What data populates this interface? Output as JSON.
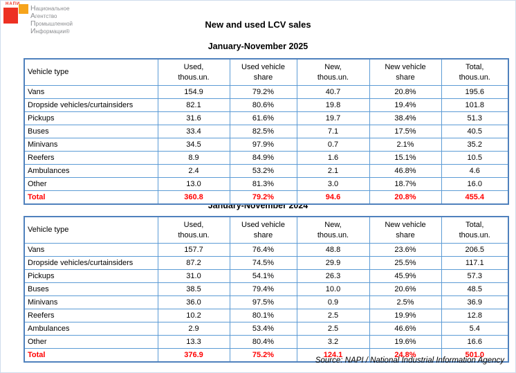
{
  "logo": {
    "mark_text": "НАПИ",
    "name_lines": [
      "Национальное",
      "Агентство",
      "Промышленной",
      "Информации®"
    ],
    "red": "#ED3123",
    "orange": "#F6A41C",
    "text_color": "#8B8D90"
  },
  "title": "New and used LCV sales",
  "source_note": "Source: NAPI / National Industrial Information Agency",
  "col_header_lines": [
    [
      "Vehicle type",
      ""
    ],
    [
      "Used,",
      "thous.un."
    ],
    [
      "Used vehicle",
      "share"
    ],
    [
      "New,",
      "thous.un."
    ],
    [
      "New vehicle",
      "share"
    ],
    [
      "Total,",
      "thous.un."
    ]
  ],
  "chart_data": [
    {
      "type": "table",
      "title": "New and used LCV sales",
      "subtitle": "January-November 2025",
      "columns": [
        "Vehicle type",
        "Used, thous.un.",
        "Used vehicle share",
        "New, thous.un.",
        "New vehicle share",
        "Total, thous.un."
      ],
      "rows": [
        [
          "Vans",
          "154.9",
          "79.2%",
          "40.7",
          "20.8%",
          "195.6"
        ],
        [
          "Dropside vehicles/curtainsiders",
          "82.1",
          "80.6%",
          "19.8",
          "19.4%",
          "101.8"
        ],
        [
          "Pickups",
          "31.6",
          "61.6%",
          "19.7",
          "38.4%",
          "51.3"
        ],
        [
          "Buses",
          "33.4",
          "82.5%",
          "7.1",
          "17.5%",
          "40.5"
        ],
        [
          "Minivans",
          "34.5",
          "97.9%",
          "0.7",
          "2.1%",
          "35.2"
        ],
        [
          "Reefers",
          "8.9",
          "84.9%",
          "1.6",
          "15.1%",
          "10.5"
        ],
        [
          "Ambulances",
          "2.4",
          "53.2%",
          "2.1",
          "46.8%",
          "4.6"
        ],
        [
          "Other",
          "13.0",
          "81.3%",
          "3.0",
          "18.7%",
          "16.0"
        ]
      ],
      "total": [
        "Total",
        "360.8",
        "79.2%",
        "94.6",
        "20.8%",
        "455.4"
      ]
    },
    {
      "type": "table",
      "title": "New and used LCV sales",
      "subtitle": "January-November 2024",
      "columns": [
        "Vehicle type",
        "Used, thous.un.",
        "Used vehicle share",
        "New, thous.un.",
        "New vehicle share",
        "Total, thous.un."
      ],
      "rows": [
        [
          "Vans",
          "157.7",
          "76.4%",
          "48.8",
          "23.6%",
          "206.5"
        ],
        [
          "Dropside vehicles/curtainsiders",
          "87.2",
          "74.5%",
          "29.9",
          "25.5%",
          "117.1"
        ],
        [
          "Pickups",
          "31.0",
          "54.1%",
          "26.3",
          "45.9%",
          "57.3"
        ],
        [
          "Buses",
          "38.5",
          "79.4%",
          "10.0",
          "20.6%",
          "48.5"
        ],
        [
          "Minivans",
          "36.0",
          "97.5%",
          "0.9",
          "2.5%",
          "36.9"
        ],
        [
          "Reefers",
          "10.2",
          "80.1%",
          "2.5",
          "19.9%",
          "12.8"
        ],
        [
          "Ambulances",
          "2.9",
          "53.4%",
          "2.5",
          "46.6%",
          "5.4"
        ],
        [
          "Other",
          "13.3",
          "80.4%",
          "3.2",
          "19.6%",
          "16.6"
        ]
      ],
      "total": [
        "Total",
        "376.9",
        "75.2%",
        "124.1",
        "24.8%",
        "501.0"
      ]
    }
  ],
  "colors": {
    "border_outer": "#4F81BD",
    "border_inner": "#5B9BD5",
    "total_text": "#FF0000",
    "logo_red": "#ED3123",
    "logo_orange": "#F6A41C"
  }
}
